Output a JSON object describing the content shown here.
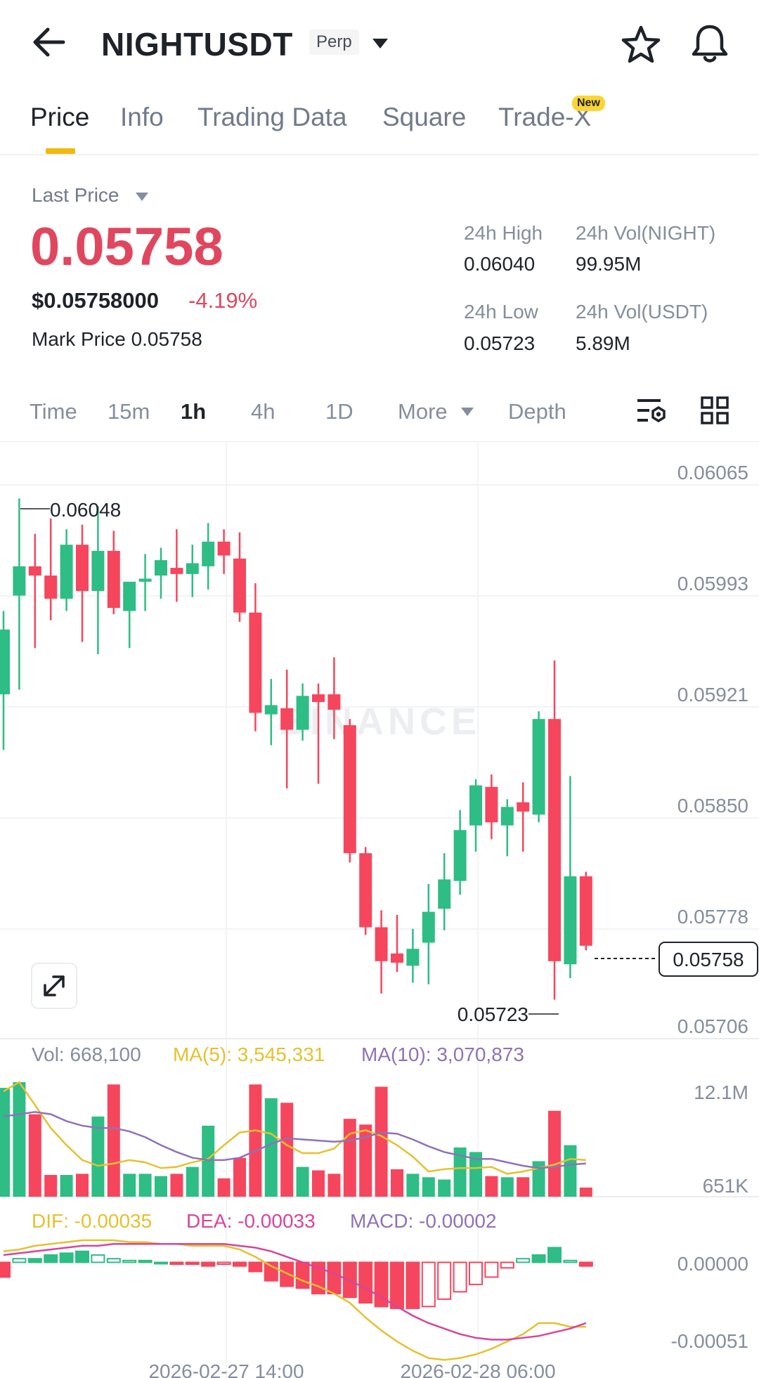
{
  "header": {
    "symbol": "NIGHTUSDT",
    "contract_type": "Perp"
  },
  "tabs": [
    {
      "label": "Price",
      "active": true
    },
    {
      "label": "Info"
    },
    {
      "label": "Trading Data"
    },
    {
      "label": "Square"
    },
    {
      "label": "Trade-X",
      "badge": "New"
    }
  ],
  "price": {
    "last_price_label": "Last Price",
    "last_price": "0.05758",
    "usd_price": "$0.05758000",
    "change_pct": "-4.19%",
    "mark_price_text": "Mark Price 0.05758",
    "high_label": "24h High",
    "high_value": "0.06040",
    "vol_base_label": "24h Vol(NIGHT)",
    "vol_base_value": "99.95M",
    "low_label": "24h Low",
    "low_value": "0.05723",
    "vol_quote_label": "24h Vol(USDT)",
    "vol_quote_value": "5.89M"
  },
  "intervals": {
    "time": "Time",
    "m15": "15m",
    "h1": "1h",
    "h4": "4h",
    "d1": "1D",
    "more": "More",
    "depth": "Depth",
    "active": "1h"
  },
  "colors": {
    "up": "#2ebd85",
    "down": "#f6465d",
    "ma5": "#e5c12f",
    "ma10": "#8f72b8",
    "dea": "#d6459c",
    "accent": "#f0b90b"
  },
  "icons": [
    "back-arrow-icon",
    "dropdown-caret-icon",
    "star-icon",
    "bell-icon",
    "chart-settings-icon",
    "grid-layout-icon",
    "expand-icon"
  ],
  "chart": {
    "watermark": "BINANCE",
    "price_axis": [
      "0.06065",
      "0.05993",
      "0.05921",
      "0.05850",
      "0.05778",
      "0.05706"
    ],
    "current_price_tag": "0.05758",
    "high_marker": "0.06048",
    "low_marker": "0.05723",
    "vol_legend": "Vol: 668,100",
    "ma5_legend": "MA(5): 3,545,331",
    "ma10_legend": "MA(10): 3,070,873",
    "vol_axis_top": "12.1M",
    "vol_axis_bottom": "651K",
    "dif_legend": "DIF: -0.00035",
    "dea_legend": "DEA: -0.00033",
    "macd_legend": "MACD: -0.00002",
    "macd_axis_top": "0.00000",
    "macd_axis_bottom": "-0.00051",
    "time_labels": [
      "2026-02-27 14:00",
      "2026-02-28 06:00"
    ]
  },
  "chart_data": {
    "type": "candlestick",
    "price_ylim": [
      0.05706,
      0.06065
    ],
    "candles": [
      {
        "o": 0.05921,
        "h": 0.05975,
        "l": 0.05885,
        "c": 0.05963
      },
      {
        "o": 0.05985,
        "h": 0.06048,
        "l": 0.05924,
        "c": 0.06004
      },
      {
        "o": 0.06004,
        "h": 0.06025,
        "l": 0.05951,
        "c": 0.05998
      },
      {
        "o": 0.05998,
        "h": 0.06035,
        "l": 0.05969,
        "c": 0.05983
      },
      {
        "o": 0.05983,
        "h": 0.06028,
        "l": 0.05975,
        "c": 0.06018
      },
      {
        "o": 0.06018,
        "h": 0.06031,
        "l": 0.05955,
        "c": 0.05988
      },
      {
        "o": 0.05988,
        "h": 0.06043,
        "l": 0.05947,
        "c": 0.06014
      },
      {
        "o": 0.06014,
        "h": 0.06027,
        "l": 0.05973,
        "c": 0.05977
      },
      {
        "o": 0.05975,
        "h": 0.05992,
        "l": 0.05951,
        "c": 0.05994
      },
      {
        "o": 0.05994,
        "h": 0.06012,
        "l": 0.05975,
        "c": 0.05996
      },
      {
        "o": 0.05998,
        "h": 0.06016,
        "l": 0.05983,
        "c": 0.06008
      },
      {
        "o": 0.06003,
        "h": 0.06028,
        "l": 0.05981,
        "c": 0.05999
      },
      {
        "o": 0.05999,
        "h": 0.06018,
        "l": 0.05984,
        "c": 0.06006
      },
      {
        "o": 0.06004,
        "h": 0.06032,
        "l": 0.05989,
        "c": 0.0602
      },
      {
        "o": 0.0602,
        "h": 0.06028,
        "l": 0.05999,
        "c": 0.06011
      },
      {
        "o": 0.06009,
        "h": 0.06026,
        "l": 0.05968,
        "c": 0.05974
      },
      {
        "o": 0.05974,
        "h": 0.05993,
        "l": 0.05897,
        "c": 0.05909
      },
      {
        "o": 0.05908,
        "h": 0.05931,
        "l": 0.05888,
        "c": 0.05914
      },
      {
        "o": 0.05912,
        "h": 0.05937,
        "l": 0.0586,
        "c": 0.05898
      },
      {
        "o": 0.05898,
        "h": 0.05928,
        "l": 0.05891,
        "c": 0.0592
      },
      {
        "o": 0.05921,
        "h": 0.05928,
        "l": 0.05863,
        "c": 0.05916
      },
      {
        "o": 0.05921,
        "h": 0.05945,
        "l": 0.05892,
        "c": 0.05911
      },
      {
        "o": 0.05901,
        "h": 0.05905,
        "l": 0.05812,
        "c": 0.05818
      },
      {
        "o": 0.05818,
        "h": 0.05822,
        "l": 0.05765,
        "c": 0.0577
      },
      {
        "o": 0.0577,
        "h": 0.05781,
        "l": 0.05727,
        "c": 0.05748
      },
      {
        "o": 0.05753,
        "h": 0.05778,
        "l": 0.05741,
        "c": 0.05747
      },
      {
        "o": 0.05745,
        "h": 0.05769,
        "l": 0.05734,
        "c": 0.05756
      },
      {
        "o": 0.0576,
        "h": 0.05798,
        "l": 0.05733,
        "c": 0.0578
      },
      {
        "o": 0.05782,
        "h": 0.05818,
        "l": 0.05768,
        "c": 0.05801
      },
      {
        "o": 0.058,
        "h": 0.05846,
        "l": 0.05791,
        "c": 0.05833
      },
      {
        "o": 0.05836,
        "h": 0.05866,
        "l": 0.05819,
        "c": 0.05862
      },
      {
        "o": 0.05861,
        "h": 0.05869,
        "l": 0.05827,
        "c": 0.05838
      },
      {
        "o": 0.05836,
        "h": 0.05853,
        "l": 0.05816,
        "c": 0.05848
      },
      {
        "o": 0.05851,
        "h": 0.05864,
        "l": 0.05819,
        "c": 0.05845
      },
      {
        "o": 0.05843,
        "h": 0.0591,
        "l": 0.05838,
        "c": 0.05905
      },
      {
        "o": 0.05905,
        "h": 0.05943,
        "l": 0.05723,
        "c": 0.05748
      },
      {
        "o": 0.05746,
        "h": 0.05868,
        "l": 0.05737,
        "c": 0.05803
      },
      {
        "o": 0.05803,
        "h": 0.05806,
        "l": 0.05755,
        "c": 0.05758
      }
    ],
    "volume_ylim": [
      651000,
      12100000
    ],
    "ma_price_ylim": [
      0,
      1
    ],
    "volumes_rel": [
      0.95,
      1.0,
      0.72,
      0.19,
      0.19,
      0.2,
      0.7,
      0.98,
      0.2,
      0.2,
      0.18,
      0.2,
      0.26,
      0.62,
      0.16,
      0.34,
      0.98,
      0.86,
      0.82,
      0.26,
      0.23,
      0.2,
      0.68,
      0.63,
      0.96,
      0.24,
      0.2,
      0.17,
      0.15,
      0.43,
      0.39,
      0.18,
      0.17,
      0.17,
      0.31,
      0.75,
      0.45,
      0.08
    ],
    "ma5_rel": [
      0.92,
      1.0,
      0.8,
      0.6,
      0.45,
      0.32,
      0.27,
      0.29,
      0.32,
      0.3,
      0.25,
      0.26,
      0.3,
      0.33,
      0.45,
      0.56,
      0.58,
      0.55,
      0.45,
      0.38,
      0.38,
      0.42,
      0.55,
      0.58,
      0.53,
      0.45,
      0.35,
      0.22,
      0.24,
      0.25,
      0.25,
      0.26,
      0.2,
      0.22,
      0.25,
      0.28,
      0.33,
      0.32
    ],
    "ma10_rel": [
      0.7,
      0.72,
      0.74,
      0.72,
      0.66,
      0.62,
      0.6,
      0.6,
      0.57,
      0.52,
      0.45,
      0.39,
      0.34,
      0.32,
      0.32,
      0.34,
      0.4,
      0.46,
      0.51,
      0.5,
      0.49,
      0.48,
      0.49,
      0.52,
      0.56,
      0.55,
      0.5,
      0.44,
      0.39,
      0.36,
      0.33,
      0.33,
      0.3,
      0.27,
      0.25,
      0.26,
      0.28,
      0.29
    ],
    "macd_ylim": [
      -0.00051,
      0.00012
    ],
    "dif": [
      6e-05,
      7e-05,
      9e-05,
      0.0001,
      0.00011,
      0.00012,
      0.00012,
      0.00012,
      0.00011,
      0.00011,
      0.0001,
      0.0001,
      9e-05,
      9e-05,
      9e-05,
      7e-05,
      3e-05,
      -2e-05,
      -6e-05,
      -0.0001,
      -0.00013,
      -0.00017,
      -0.00022,
      -0.0003,
      -0.00037,
      -0.00043,
      -0.00048,
      -0.00052,
      -0.00053,
      -0.00052,
      -0.0005,
      -0.00047,
      -0.00043,
      -0.00039,
      -0.00033,
      -0.00033,
      -0.00035,
      -0.00035
    ],
    "dea": [
      4e-05,
      5e-05,
      6e-05,
      7e-05,
      8e-05,
      9e-05,
      9e-05,
      0.0001,
      0.0001,
      0.0001,
      0.0001,
      0.0001,
      0.0001,
      0.0001,
      0.0001,
      9e-05,
      8e-05,
      6e-05,
      3e-05,
      0.0,
      -3e-05,
      -6e-05,
      -0.0001,
      -0.00014,
      -0.00019,
      -0.00024,
      -0.00029,
      -0.00033,
      -0.00036,
      -0.00039,
      -0.00041,
      -0.00042,
      -0.00042,
      -0.00041,
      -0.0004,
      -0.00038,
      -0.00036,
      -0.00033
    ],
    "macd_hist": [
      -8e-05,
      2e-05,
      2e-05,
      4e-05,
      5e-05,
      6e-05,
      4e-05,
      2e-05,
      1e-05,
      1e-05,
      0.0,
      -1e-05,
      -1e-05,
      -2e-05,
      -1e-05,
      -2e-05,
      -5e-05,
      -0.0001,
      -0.00013,
      -0.00014,
      -0.00017,
      -0.00017,
      -0.00019,
      -0.00022,
      -0.00024,
      -0.00025,
      -0.00025,
      -0.00024,
      -0.0002,
      -0.00016,
      -0.00012,
      -8e-05,
      -3e-05,
      2e-05,
      4e-05,
      8e-05,
      1e-05,
      -2e-05
    ]
  }
}
